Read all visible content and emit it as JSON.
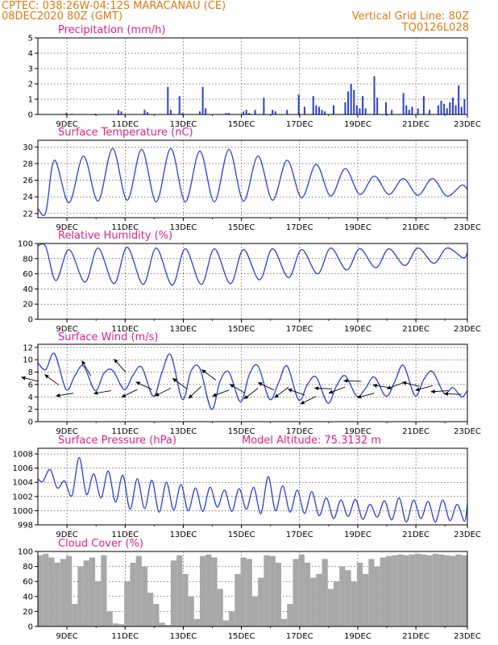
{
  "header": {
    "line1_left": "CPTEC:   038:26W-04:12S   MARACANAU (CE)",
    "line2_left": "08DEC2020 80Z (GMT)",
    "line2_right": "Vertical Grid Line: 80Z",
    "line3_right": "TQ0126L028"
  },
  "colors": {
    "header": "#e07a10",
    "title": "#e0208a",
    "line": "#2a3fd8",
    "cloud": "#a8a8a8",
    "wind": "#000000"
  },
  "chart_data": [
    {
      "id": "precip",
      "type": "bar",
      "title": "Precipitation (mm/h)",
      "ylim": [
        0,
        5
      ],
      "yticks": [
        0,
        1,
        2,
        3,
        4,
        5
      ],
      "xticks": [
        "9DEC",
        "11DEC",
        "13DEC",
        "15DEC",
        "17DEC",
        "19DEC",
        "21DEC",
        "23DEC"
      ],
      "x_unit": "days since 08DEC 00Z",
      "xlim": [
        0.33,
        15.1
      ],
      "x": [
        1.3,
        1.5,
        2.3,
        3.1,
        3.2,
        4.0,
        4.1,
        4.8,
        4.9,
        5.2,
        5.3,
        5.9,
        6.0,
        6.1,
        6.8,
        6.9,
        7.4,
        7.5,
        7.6,
        7.8,
        8.1,
        8.4,
        8.5,
        8.9,
        9.3,
        9.5,
        9.8,
        9.9,
        10.0,
        10.1,
        10.2,
        10.5,
        10.9,
        11.0,
        11.1,
        11.2,
        11.3,
        11.4,
        11.5,
        11.6,
        11.9,
        12.0,
        12.3,
        12.5,
        12.9,
        13.0,
        13.1,
        13.2,
        13.4,
        13.6,
        13.8,
        14.1,
        14.2,
        14.3,
        14.4,
        14.5,
        14.6,
        14.7,
        14.8,
        14.9,
        15.0
      ],
      "values": [
        0.1,
        0.05,
        0.05,
        0.3,
        0.2,
        0.3,
        0.15,
        1.8,
        0.3,
        1.2,
        0.1,
        0.2,
        1.8,
        0.4,
        0.1,
        0.1,
        0.2,
        0.3,
        0.1,
        0.3,
        1.1,
        0.3,
        0.2,
        0.3,
        1.3,
        0.5,
        1.2,
        0.6,
        0.5,
        0.3,
        0.2,
        0.6,
        0.8,
        1.5,
        2.0,
        1.6,
        0.6,
        0.4,
        1.2,
        0.4,
        2.5,
        1.1,
        0.8,
        0.3,
        1.4,
        0.6,
        0.3,
        0.5,
        0.4,
        1.2,
        0.3,
        0.6,
        0.9,
        0.7,
        0.4,
        0.8,
        1.1,
        0.6,
        1.9,
        0.5,
        1.0
      ]
    },
    {
      "id": "temp",
      "type": "line",
      "title": "Surface Temperature (nC)",
      "ylim": [
        21.5,
        30.8
      ],
      "yticks": [
        22,
        24,
        26,
        28,
        30
      ],
      "xticks": [
        "9DEC",
        "11DEC",
        "13DEC",
        "15DEC",
        "17DEC",
        "19DEC",
        "21DEC",
        "23DEC"
      ],
      "x_unit": "days since 08DEC 00Z",
      "xlim": [
        0.33,
        15.1
      ],
      "x": [
        0.33,
        0.6,
        0.9,
        1.4,
        1.9,
        2.4,
        2.9,
        3.4,
        3.9,
        4.4,
        4.9,
        5.4,
        5.9,
        6.4,
        6.9,
        7.4,
        7.9,
        8.4,
        8.9,
        9.4,
        9.9,
        10.4,
        10.9,
        11.4,
        11.9,
        12.4,
        12.9,
        13.4,
        13.9,
        14.4,
        14.9,
        15.1
      ],
      "values": [
        22.6,
        22.1,
        28.4,
        23.3,
        28.9,
        23.5,
        29.8,
        23.6,
        29.7,
        23.4,
        29.8,
        23.4,
        29.5,
        23.4,
        29.7,
        23.5,
        28.9,
        23.6,
        28.4,
        23.9,
        27.9,
        24.1,
        27.4,
        24.3,
        26.5,
        24.3,
        26.2,
        24.2,
        26.2,
        24.1,
        25.4,
        24.9
      ]
    },
    {
      "id": "rh",
      "type": "line",
      "title": "Relative Humidity (%)",
      "ylim": [
        0,
        100
      ],
      "yticks": [
        0,
        20,
        40,
        60,
        80,
        100
      ],
      "xticks": [
        "9DEC",
        "11DEC",
        "13DEC",
        "15DEC",
        "17DEC",
        "19DEC",
        "21DEC",
        "23DEC"
      ],
      "x_unit": "days since 08DEC 00Z",
      "xlim": [
        0.33,
        15.1
      ],
      "x": [
        0.33,
        0.6,
        0.95,
        1.4,
        1.95,
        2.4,
        2.95,
        3.4,
        3.95,
        4.4,
        4.95,
        5.4,
        5.95,
        6.4,
        6.95,
        7.4,
        7.95,
        8.4,
        8.95,
        9.4,
        9.95,
        10.4,
        10.95,
        11.4,
        11.95,
        12.4,
        12.95,
        13.4,
        13.95,
        14.4,
        14.95,
        15.1
      ],
      "values": [
        97,
        96,
        51,
        92,
        49,
        94,
        47,
        95,
        46,
        94,
        45,
        93,
        46,
        93,
        47,
        92,
        52,
        93,
        55,
        92,
        60,
        94,
        65,
        93,
        68,
        93,
        71,
        94,
        74,
        94,
        81,
        88
      ]
    },
    {
      "id": "wind",
      "type": "line",
      "title": "Surface Wind (m/s)",
      "ylim": [
        0,
        12.5
      ],
      "yticks": [
        0,
        2,
        4,
        6,
        8,
        10,
        12
      ],
      "xticks": [
        "9DEC",
        "11DEC",
        "13DEC",
        "15DEC",
        "17DEC",
        "19DEC",
        "21DEC",
        "23DEC"
      ],
      "x_unit": "days since 08DEC 00Z",
      "xlim": [
        0.33,
        15.1
      ],
      "x": [
        0.33,
        0.6,
        0.9,
        1.3,
        1.6,
        1.9,
        2.3,
        2.6,
        2.9,
        3.3,
        3.6,
        3.9,
        4.3,
        4.6,
        4.9,
        5.3,
        5.6,
        5.9,
        6.3,
        6.6,
        6.9,
        7.3,
        7.6,
        7.9,
        8.3,
        8.6,
        8.9,
        9.3,
        9.6,
        9.9,
        10.3,
        10.6,
        10.9,
        11.3,
        11.6,
        11.9,
        12.3,
        12.6,
        12.9,
        13.3,
        13.6,
        13.9,
        14.3,
        14.6,
        14.9,
        15.1
      ],
      "values": [
        9.5,
        8.4,
        11.0,
        5.2,
        7.4,
        9.0,
        5.0,
        7.8,
        8.3,
        5.2,
        7.5,
        8.8,
        4.1,
        8.0,
        10.8,
        3.6,
        8.2,
        8.6,
        2.0,
        6.6,
        8.0,
        3.2,
        7.6,
        9.0,
        3.6,
        6.2,
        9.0,
        3.5,
        6.0,
        7.2,
        3.0,
        5.8,
        7.4,
        4.1,
        5.4,
        7.2,
        4.1,
        6.4,
        9.1,
        4.2,
        6.8,
        8.1,
        4.6,
        5.5,
        4.0,
        5.0
      ],
      "vectors": {
        "x": [
          0.35,
          1.05,
          1.55,
          2.15,
          2.85,
          3.35,
          3.75,
          4.25,
          4.9,
          5.45,
          5.95,
          6.45,
          6.9,
          7.45,
          7.9,
          8.45,
          8.95,
          9.5,
          9.9,
          10.45,
          10.9,
          11.45,
          11.9,
          12.45,
          12.9,
          13.45,
          13.9,
          14.45,
          14.9
        ],
        "speed": [
          6.5,
          5.9,
          4.6,
          7.4,
          5.0,
          8.0,
          5.2,
          5.2,
          5.4,
          5.3,
          5.7,
          6.7,
          5.1,
          4.6,
          5.4,
          5.1,
          5.6,
          4.3,
          4.1,
          5.3,
          5.6,
          6.5,
          4.6,
          5.5,
          6.3,
          5.7,
          5.8,
          5.0,
          4.4
        ],
        "dir": [
          2.9,
          2.5,
          3.3,
          2.1,
          3.3,
          2.3,
          3.6,
          2.7,
          3.6,
          2.5,
          3.9,
          2.5,
          3.5,
          2.6,
          3.8,
          2.7,
          3.8,
          2.8,
          3.6,
          3.1,
          3.5,
          3.1,
          3.4,
          3.0,
          3.5,
          2.9,
          3.4,
          3.2,
          3.1
        ]
      }
    },
    {
      "id": "pressure",
      "type": "line",
      "title": "Surface Pressure (hPa)",
      "annotation": "Model Altitude: 75.3132 m",
      "ylim": [
        998,
        1008.8
      ],
      "yticks": [
        998,
        1000,
        1002,
        1004,
        1006,
        1008
      ],
      "xticks": [
        "9DEC",
        "11DEC",
        "13DEC",
        "15DEC",
        "17DEC",
        "19DEC",
        "21DEC",
        "23DEC"
      ],
      "x_unit": "days since 08DEC 00Z",
      "xlim": [
        0.33,
        15.1
      ],
      "x": [
        0.33,
        0.5,
        0.75,
        1.0,
        1.25,
        1.5,
        1.75,
        2.0,
        2.25,
        2.5,
        2.75,
        3.0,
        3.25,
        3.5,
        3.75,
        4.0,
        4.25,
        4.5,
        4.75,
        5.0,
        5.25,
        5.5,
        5.75,
        6.0,
        6.25,
        6.5,
        6.75,
        7.0,
        7.25,
        7.5,
        7.75,
        8.0,
        8.25,
        8.5,
        8.75,
        9.0,
        9.25,
        9.5,
        9.75,
        10.0,
        10.25,
        10.5,
        10.75,
        11.0,
        11.25,
        11.5,
        11.75,
        12.0,
        12.25,
        12.5,
        12.75,
        13.0,
        13.25,
        13.5,
        13.75,
        14.0,
        14.25,
        14.5,
        14.75,
        15.0,
        15.1
      ],
      "values": [
        1004.5,
        1004.1,
        1005.8,
        1003.2,
        1004.2,
        1002.1,
        1007.5,
        1002.3,
        1005.2,
        1001.8,
        1005.6,
        1001.2,
        1005.0,
        1000.2,
        1004.5,
        1000.3,
        1004.3,
        999.8,
        1004.0,
        1000.1,
        1003.7,
        1000.0,
        1003.2,
        999.9,
        1003.3,
        1000.5,
        1002.9,
        999.9,
        1003.1,
        1000.2,
        1003.3,
        999.6,
        1004.8,
        1000.0,
        1003.5,
        999.8,
        1002.9,
        999.6,
        1002.7,
        999.3,
        1001.8,
        998.9,
        1001.5,
        999.2,
        1001.6,
        998.8,
        1000.9,
        999.1,
        1001.4,
        998.7,
        1001.8,
        998.4,
        1001.5,
        998.9,
        1001.3,
        998.4,
        1001.5,
        998.6,
        1000.9,
        998.5,
        1001.0
      ]
    },
    {
      "id": "cloud",
      "type": "area",
      "title": "Cloud Cover (%)",
      "ylim": [
        0,
        100
      ],
      "yticks": [
        0,
        20,
        40,
        60,
        80,
        100
      ],
      "xticks": [
        "9DEC",
        "11DEC",
        "13DEC",
        "15DEC",
        "17DEC",
        "19DEC",
        "21DEC",
        "23DEC"
      ],
      "x_unit": "days since 08DEC 00Z",
      "xlim": [
        0.33,
        15.1
      ],
      "x": [
        0.33,
        0.5,
        0.7,
        0.9,
        1.1,
        1.3,
        1.5,
        1.7,
        1.9,
        2.1,
        2.3,
        2.5,
        2.7,
        2.9,
        3.1,
        3.3,
        3.5,
        3.7,
        3.9,
        4.1,
        4.3,
        4.5,
        4.7,
        4.9,
        5.1,
        5.3,
        5.5,
        5.7,
        5.9,
        6.1,
        6.3,
        6.5,
        6.7,
        6.9,
        7.1,
        7.3,
        7.5,
        7.7,
        7.9,
        8.1,
        8.3,
        8.5,
        8.7,
        8.9,
        9.1,
        9.3,
        9.5,
        9.7,
        9.9,
        10.1,
        10.3,
        10.5,
        10.7,
        10.9,
        11.1,
        11.3,
        11.5,
        11.7,
        11.9,
        12.1,
        12.3,
        12.5,
        12.7,
        12.9,
        13.1,
        13.3,
        13.5,
        13.7,
        13.9,
        14.1,
        14.3,
        14.5,
        14.7,
        14.9,
        15.1
      ],
      "values": [
        95,
        97,
        92,
        85,
        90,
        94,
        30,
        80,
        88,
        92,
        60,
        95,
        20,
        4,
        3,
        60,
        85,
        94,
        80,
        45,
        30,
        5,
        2,
        88,
        95,
        70,
        40,
        10,
        94,
        96,
        92,
        50,
        8,
        20,
        70,
        92,
        90,
        40,
        65,
        95,
        94,
        85,
        10,
        30,
        90,
        96,
        85,
        65,
        70,
        90,
        50,
        60,
        80,
        75,
        60,
        85,
        70,
        90,
        80,
        92,
        94,
        95,
        96,
        95,
        96,
        97,
        96,
        95,
        97,
        96,
        95,
        94,
        96,
        95,
        96
      ]
    }
  ]
}
